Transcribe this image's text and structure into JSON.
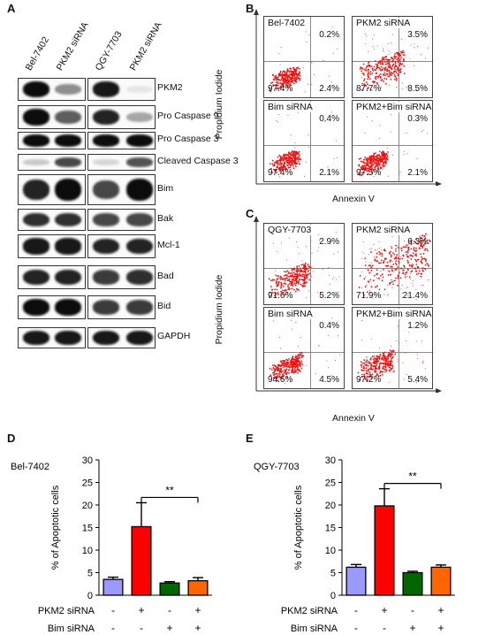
{
  "panels": {
    "A": {
      "label": "A",
      "lanes": [
        "Bel-7402",
        "PKM2 siRNA",
        "QGY-7703",
        "PKM2 siRNA"
      ],
      "blots": [
        {
          "name": "PKM2",
          "bands": [
            1.0,
            0.45,
            0.95,
            0.08
          ]
        },
        {
          "name": "Pro Caspase 9",
          "bands": [
            1.0,
            0.65,
            0.9,
            0.35
          ]
        },
        {
          "name": "Pro Caspase 3",
          "bands": [
            1.0,
            1.0,
            1.0,
            1.0
          ]
        },
        {
          "name": "Cleaved Caspase 3",
          "bands": [
            0.2,
            0.75,
            0.15,
            0.7
          ]
        },
        {
          "name": "Bim",
          "bands": [
            0.9,
            1.0,
            0.75,
            1.0
          ]
        },
        {
          "name": "Bak",
          "bands": [
            0.85,
            0.85,
            0.75,
            0.75
          ]
        },
        {
          "name": "Mcl-1",
          "bands": [
            0.95,
            0.95,
            0.9,
            0.9
          ]
        },
        {
          "name": "Bad",
          "bands": [
            0.9,
            0.9,
            0.8,
            0.85
          ]
        },
        {
          "name": "Bid",
          "bands": [
            1.0,
            1.0,
            0.8,
            0.8
          ]
        },
        {
          "name": "GAPDH",
          "bands": [
            0.95,
            0.95,
            0.95,
            0.95
          ]
        }
      ]
    },
    "B": {
      "label": "B",
      "ylabel": "Propidium Iodide",
      "xlabel": "Annexin V",
      "quadrants": [
        {
          "title": "Bel-7402",
          "ur": "0.2%",
          "ll": "97.4%",
          "lr": "2.4%"
        },
        {
          "title": "PKM2 siRNA",
          "ur": "3.5%",
          "ll": "87.7%",
          "lr": "8.5%"
        },
        {
          "title": "Bim siRNA",
          "ur": "0.4%",
          "ll": "97.4%",
          "lr": "2.1%"
        },
        {
          "title": "PKM2+Bim siRNA",
          "ur": "0.3%",
          "ll": "97.5%",
          "lr": "2.1%"
        }
      ]
    },
    "C": {
      "label": "C",
      "ylabel": "Propidium Iodide",
      "xlabel": "Annexin V",
      "quadrants": [
        {
          "title": "QGY-7703",
          "ur": "2.9%",
          "ll": "91.6%",
          "lr": "5.2%"
        },
        {
          "title": "PKM2 siRNA",
          "ur": "6.3%",
          "ll": "71.9%",
          "lr": "21.4%"
        },
        {
          "title": "Bim siRNA",
          "ur": "0.4%",
          "ll": "94.6%",
          "lr": "4.5%"
        },
        {
          "title": "PKM2+Bim siRNA",
          "ur": "1.2%",
          "ll": "97.2%",
          "lr": "5.4%"
        }
      ]
    },
    "D": {
      "label": "D"
    },
    "E": {
      "label": "E"
    }
  },
  "chart_data": [
    {
      "panel": "D",
      "type": "bar",
      "title": "Bel-7402",
      "ylabel": "% of Apoptotic cells",
      "ylim": [
        0,
        30
      ],
      "yticks": [
        0,
        5,
        10,
        15,
        20,
        25,
        30
      ],
      "categories": [
        "1",
        "2",
        "3",
        "4"
      ],
      "values": [
        3.5,
        15.2,
        2.7,
        3.2
      ],
      "errors": [
        0.5,
        5.3,
        0.3,
        0.7
      ],
      "colors": [
        "#9999ff",
        "#ff0000",
        "#006600",
        "#ff6600"
      ],
      "conditions": [
        {
          "label": "PKM2 siRNA",
          "marks": [
            "-",
            "+",
            "-",
            "+"
          ]
        },
        {
          "label": "Bim siRNA",
          "marks": [
            "-",
            "-",
            "+",
            "+"
          ]
        }
      ],
      "significance": {
        "from": 1,
        "to": 3,
        "text": "**"
      }
    },
    {
      "panel": "E",
      "type": "bar",
      "title": "QGY-7703",
      "ylabel": "% of Apoptotic cells",
      "ylim": [
        0,
        30
      ],
      "yticks": [
        0,
        5,
        10,
        15,
        20,
        25,
        30
      ],
      "categories": [
        "1",
        "2",
        "3",
        "4"
      ],
      "values": [
        6.2,
        19.8,
        5.0,
        6.2
      ],
      "errors": [
        0.6,
        3.8,
        0.3,
        0.5
      ],
      "colors": [
        "#9999ff",
        "#ff0000",
        "#006600",
        "#ff6600"
      ],
      "conditions": [
        {
          "label": "PKM2 siRNA",
          "marks": [
            "-",
            "+",
            "-",
            "+"
          ]
        },
        {
          "label": "Bim siRNA",
          "marks": [
            "-",
            "-",
            "+",
            "+"
          ]
        }
      ],
      "significance": {
        "from": 1,
        "to": 3,
        "text": "**"
      }
    }
  ],
  "styles": {
    "dot_color": "#ee1111",
    "band_color": "#0c0c0c"
  }
}
